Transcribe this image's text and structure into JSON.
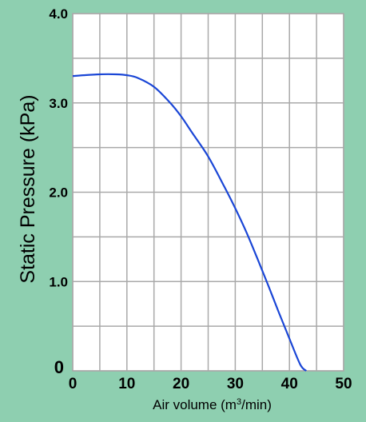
{
  "colors": {
    "background": "#8ecfb0",
    "plot_area": "#ffffff",
    "grid": "#a9a9a9",
    "curve": "#1a46d6",
    "text": "#000000"
  },
  "chart_data": {
    "type": "line",
    "title": "",
    "xlabel_main": "Air volume (m",
    "xlabel_sup": "3",
    "xlabel_tail": "/min)",
    "ylabel": "Static Pressure (kPa)",
    "xlim": [
      0,
      50
    ],
    "ylim": [
      0,
      4.0
    ],
    "grid": true,
    "x_ticks": [
      {
        "value": 0,
        "label": "0"
      },
      {
        "value": 10,
        "label": "10"
      },
      {
        "value": 20,
        "label": "20"
      },
      {
        "value": 30,
        "label": "30"
      },
      {
        "value": 40,
        "label": "40"
      },
      {
        "value": 50,
        "label": "50"
      }
    ],
    "y_ticks": [
      {
        "value": 0,
        "label": "0"
      },
      {
        "value": 1.0,
        "label": "1.0"
      },
      {
        "value": 2.0,
        "label": "2.0"
      },
      {
        "value": 3.0,
        "label": "3.0"
      },
      {
        "value": 4.0,
        "label": "4.0"
      }
    ],
    "x_grid_step": 5,
    "y_grid_step": 0.5,
    "series": [
      {
        "x": [
          0,
          2,
          5,
          8,
          10,
          12,
          15,
          18,
          20,
          22,
          25,
          28,
          30,
          32,
          34,
          36,
          38,
          40,
          42,
          43.1
        ],
        "y": [
          3.3,
          3.31,
          3.32,
          3.32,
          3.31,
          3.28,
          3.18,
          3.0,
          2.85,
          2.67,
          2.4,
          2.06,
          1.82,
          1.56,
          1.27,
          0.97,
          0.66,
          0.36,
          0.07,
          0.0
        ]
      }
    ]
  }
}
